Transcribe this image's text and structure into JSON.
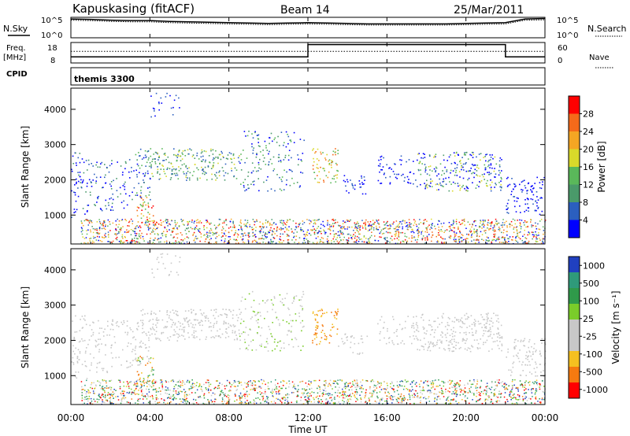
{
  "header": {
    "station": "Kapuskasing (fitACF)",
    "beam": "Beam 14",
    "date": "25/Mar/2011"
  },
  "left_labels": {
    "nsky": "N.Sky",
    "freq": "Freq.",
    "freq_unit": "[MHz]",
    "cpid": "CPID"
  },
  "right_labels": {
    "nsearch": "N.Search",
    "nave": "Nave"
  },
  "cpid_value": "themis 3300",
  "chart_data": [
    {
      "type": "line",
      "name": "noise-panel",
      "ylabel_left": "N.Sky",
      "ylabel_right": "N.Search",
      "left_ticks": [
        "10^5",
        "10^0"
      ],
      "right_ticks": [
        "10^5",
        "10^0"
      ],
      "x": [
        0,
        1,
        2,
        3,
        4,
        5,
        6,
        7,
        8,
        9,
        10,
        11,
        12,
        13,
        14,
        15,
        16,
        17,
        18,
        19,
        20,
        21,
        22,
        23,
        24
      ],
      "series": [
        {
          "values": [
            4.6,
            4.5,
            4.3,
            4.2,
            4.2,
            4.0,
            3.9,
            3.8,
            3.7,
            3.6,
            3.5,
            3.6,
            3.7,
            3.6,
            3.5,
            3.4,
            3.4,
            3.4,
            3.4,
            3.4,
            3.5,
            3.6,
            3.7,
            4.6,
            4.7
          ]
        },
        {
          "values": [
            4.3,
            4.2,
            4.0,
            3.9,
            3.9,
            3.7,
            3.6,
            3.5,
            3.4,
            3.3,
            3.2,
            3.3,
            3.4,
            3.3,
            3.2,
            3.1,
            3.1,
            3.1,
            3.1,
            3.1,
            3.2,
            3.3,
            3.4,
            4.3,
            4.4
          ]
        }
      ]
    },
    {
      "type": "line",
      "name": "freq-nave-panel",
      "ylabel_left": "Freq. [MHz]",
      "ylabel_right": "Nave",
      "left_ticks": [
        "18",
        "8"
      ],
      "right_ticks": [
        "60",
        "0"
      ],
      "series": [
        {
          "x": [
            0,
            12,
            12,
            22,
            22,
            24
          ],
          "values": [
            11,
            11,
            17,
            17,
            11,
            11
          ]
        },
        {
          "x": [
            0,
            24
          ],
          "values": [
            34,
            34
          ]
        }
      ]
    },
    {
      "type": "heatmap",
      "name": "power",
      "ylabel": "Slant Range [km]",
      "ylim": [
        180,
        4600
      ],
      "yticks": [
        1000,
        2000,
        3000,
        4000
      ],
      "colorbar_label": "Power [dB]",
      "colorbar_ticks": [
        "4",
        "8",
        "12",
        "16",
        "20",
        "24",
        "28"
      ],
      "colors": [
        "#0000ff",
        "#2b5fbf",
        "#4a9a6a",
        "#5ab85a",
        "#d9d92a",
        "#f5a623",
        "#f56a1a",
        "#ff0000"
      ]
    },
    {
      "type": "heatmap",
      "name": "velocity",
      "ylabel": "Slant Range [km]",
      "ylim": [
        180,
        4600
      ],
      "yticks": [
        1000,
        2000,
        3000,
        4000
      ],
      "colorbar_label": "Velocity [m s⁻¹]",
      "colorbar_ticks": [
        "1000",
        "500",
        "100",
        "25",
        "-25",
        "-100",
        "-500",
        "-1000"
      ],
      "colors": [
        "#2040c0",
        "#2f9a7a",
        "#2f9a4a",
        "#7acc2a",
        "#c8c8c8",
        "#c8c8c8",
        "#f5c020",
        "#f57a10",
        "#ff0000"
      ],
      "xlabel": "Time UT",
      "xticks": [
        "00:00",
        "04:00",
        "08:00",
        "12:00",
        "16:00",
        "20:00",
        "00:00"
      ]
    }
  ]
}
